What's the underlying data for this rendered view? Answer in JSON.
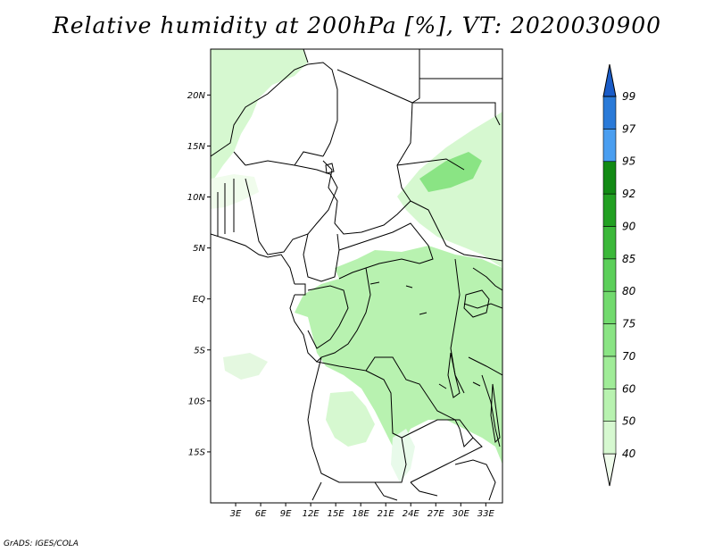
{
  "title": "Relative humidity at 200hPa [%], VT: 2020030900",
  "footer": "GrADS: IGES/COLA",
  "map": {
    "lat_labels": [
      "20N",
      "15N",
      "10N",
      "5N",
      "EQ",
      "5S",
      "10S",
      "15S"
    ],
    "lon_labels": [
      "3E",
      "6E",
      "9E",
      "12E",
      "15E",
      "18E",
      "21E",
      "24E",
      "27E",
      "30E",
      "33E"
    ],
    "lat_range": [
      -20,
      24.5
    ],
    "lon_range": [
      0,
      35
    ]
  },
  "colorbar": {
    "levels": [
      "40",
      "50",
      "60",
      "70",
      "75",
      "80",
      "85",
      "90",
      "92",
      "95",
      "97",
      "99"
    ],
    "colors": [
      "#f0fcec",
      "#d6f8d0",
      "#b8f2b0",
      "#a0ec98",
      "#8ae484",
      "#72da6e",
      "#5ccf5a",
      "#3cb83a",
      "#22a022",
      "#128a14",
      "#4a9ef0",
      "#2a7ad8",
      "#1a5cc8"
    ]
  }
}
